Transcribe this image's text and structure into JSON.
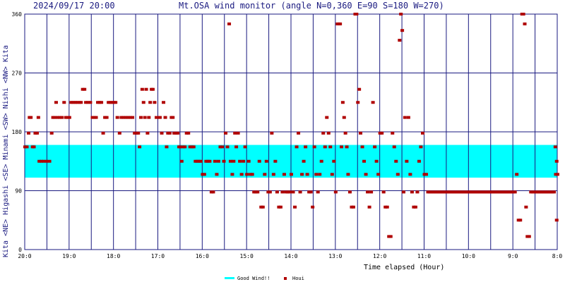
{
  "header": {
    "timestamp": "2024/09/17 20:00",
    "title": "Mt.OSA wind monitor (angle N=0,360 E=90 S=180 W=270)"
  },
  "side_label": "Kita <NE> Higashi <SE> Minami <SW> Nishi <NW> Kita",
  "legend": {
    "band_label": "Good Wind!!",
    "points_label": "Houi"
  },
  "colors": {
    "band": "#00ffff",
    "points": "#b00000",
    "grid": "#1a1a80",
    "text": "#1a1a80"
  },
  "chart_data": {
    "type": "scatter",
    "title": "Mt.OSA wind monitor (angle N=0,360 E=90 S=180 W=270)",
    "xlabel": "Time elapsed (Hour)",
    "ylabel": "",
    "ylim": [
      0,
      360
    ],
    "x_range": [
      20,
      8
    ],
    "x_axis_reversed": true,
    "y_ticks": [
      "0",
      "90",
      "180",
      "270",
      "360"
    ],
    "y_tick_values": [
      0,
      90,
      180,
      270,
      360
    ],
    "x_ticks": [
      "20:0",
      "19:0",
      "18:0",
      "17:0",
      "16:0",
      "15:0",
      "14:0",
      "13:0",
      "12:0",
      "11:0",
      "10:0",
      "9:0",
      "8:0"
    ],
    "x_tick_values": [
      20,
      19,
      18,
      17,
      16,
      15,
      14,
      13,
      12,
      11,
      10,
      9,
      8
    ],
    "good_wind_band": [
      110,
      160
    ],
    "grid": true,
    "legend_position": "bottom-center",
    "series": [
      {
        "name": "Houi",
        "points": [
          [
            20.0,
            157
          ],
          [
            19.96,
            157
          ],
          [
            19.92,
            178
          ],
          [
            19.9,
            202
          ],
          [
            19.87,
            202
          ],
          [
            19.83,
            157
          ],
          [
            19.8,
            157
          ],
          [
            19.77,
            178
          ],
          [
            19.73,
            178
          ],
          [
            19.7,
            202
          ],
          [
            19.68,
            135
          ],
          [
            19.63,
            135
          ],
          [
            19.58,
            135
          ],
          [
            19.52,
            135
          ],
          [
            19.45,
            135
          ],
          [
            19.4,
            178
          ],
          [
            19.37,
            202
          ],
          [
            19.33,
            202
          ],
          [
            19.3,
            225
          ],
          [
            19.27,
            202
          ],
          [
            19.22,
            202
          ],
          [
            19.17,
            202
          ],
          [
            19.12,
            225
          ],
          [
            19.08,
            202
          ],
          [
            19.04,
            202
          ],
          [
            19.0,
            202
          ],
          [
            18.96,
            225
          ],
          [
            18.92,
            225
          ],
          [
            18.87,
            225
          ],
          [
            18.83,
            225
          ],
          [
            18.78,
            225
          ],
          [
            18.74,
            225
          ],
          [
            18.7,
            245
          ],
          [
            18.66,
            245
          ],
          [
            18.63,
            225
          ],
          [
            18.58,
            225
          ],
          [
            18.53,
            225
          ],
          [
            18.48,
            202
          ],
          [
            18.44,
            202
          ],
          [
            18.4,
            202
          ],
          [
            18.36,
            225
          ],
          [
            18.32,
            225
          ],
          [
            18.28,
            225
          ],
          [
            18.24,
            178
          ],
          [
            18.2,
            202
          ],
          [
            18.16,
            202
          ],
          [
            18.12,
            225
          ],
          [
            18.08,
            225
          ],
          [
            18.04,
            225
          ],
          [
            18.0,
            225
          ],
          [
            17.96,
            225
          ],
          [
            17.92,
            202
          ],
          [
            17.87,
            178
          ],
          [
            17.83,
            202
          ],
          [
            17.78,
            202
          ],
          [
            17.73,
            202
          ],
          [
            17.68,
            202
          ],
          [
            17.63,
            202
          ],
          [
            17.58,
            202
          ],
          [
            17.53,
            178
          ],
          [
            17.49,
            178
          ],
          [
            17.45,
            178
          ],
          [
            17.42,
            157
          ],
          [
            17.39,
            202
          ],
          [
            17.36,
            245
          ],
          [
            17.33,
            225
          ],
          [
            17.3,
            202
          ],
          [
            17.27,
            245
          ],
          [
            17.24,
            178
          ],
          [
            17.21,
            202
          ],
          [
            17.18,
            225
          ],
          [
            17.15,
            245
          ],
          [
            17.12,
            245
          ],
          [
            17.08,
            225
          ],
          [
            17.04,
            202
          ],
          [
            17.0,
            202
          ],
          [
            16.96,
            202
          ],
          [
            16.92,
            178
          ],
          [
            16.88,
            225
          ],
          [
            16.84,
            202
          ],
          [
            16.81,
            157
          ],
          [
            16.78,
            178
          ],
          [
            16.74,
            178
          ],
          [
            16.7,
            202
          ],
          [
            16.67,
            202
          ],
          [
            16.64,
            178
          ],
          [
            16.6,
            178
          ],
          [
            16.56,
            178
          ],
          [
            16.53,
            157
          ],
          [
            16.5,
            157
          ],
          [
            16.47,
            135
          ],
          [
            16.44,
            157
          ],
          [
            16.4,
            157
          ],
          [
            16.36,
            178
          ],
          [
            16.32,
            178
          ],
          [
            16.28,
            157
          ],
          [
            16.24,
            157
          ],
          [
            16.2,
            157
          ],
          [
            16.16,
            135
          ],
          [
            16.12,
            135
          ],
          [
            16.08,
            135
          ],
          [
            16.04,
            135
          ],
          [
            16.0,
            115
          ],
          [
            15.96,
            115
          ],
          [
            15.92,
            135
          ],
          [
            15.88,
            135
          ],
          [
            15.84,
            135
          ],
          [
            15.8,
            88
          ],
          [
            15.76,
            88
          ],
          [
            15.72,
            135
          ],
          [
            15.68,
            115
          ],
          [
            15.64,
            135
          ],
          [
            15.6,
            157
          ],
          [
            15.56,
            157
          ],
          [
            15.52,
            135
          ],
          [
            15.48,
            178
          ],
          [
            15.44,
            157
          ],
          [
            15.4,
            345
          ],
          [
            15.37,
            135
          ],
          [
            15.33,
            115
          ],
          [
            15.3,
            135
          ],
          [
            15.27,
            178
          ],
          [
            15.24,
            157
          ],
          [
            15.2,
            178
          ],
          [
            15.16,
            135
          ],
          [
            15.12,
            115
          ],
          [
            15.08,
            135
          ],
          [
            15.04,
            157
          ],
          [
            15.0,
            115
          ],
          [
            14.96,
            135
          ],
          [
            14.92,
            115
          ],
          [
            14.88,
            115
          ],
          [
            14.84,
            88
          ],
          [
            14.8,
            88
          ],
          [
            14.76,
            88
          ],
          [
            14.72,
            135
          ],
          [
            14.68,
            65
          ],
          [
            14.64,
            65
          ],
          [
            14.6,
            115
          ],
          [
            14.56,
            135
          ],
          [
            14.52,
            88
          ],
          [
            14.48,
            88
          ],
          [
            14.44,
            178
          ],
          [
            14.4,
            115
          ],
          [
            14.36,
            135
          ],
          [
            14.32,
            88
          ],
          [
            14.28,
            65
          ],
          [
            14.24,
            65
          ],
          [
            14.2,
            88
          ],
          [
            14.16,
            115
          ],
          [
            14.12,
            88
          ],
          [
            14.08,
            88
          ],
          [
            14.04,
            88
          ],
          [
            14.0,
            115
          ],
          [
            13.96,
            88
          ],
          [
            13.92,
            65
          ],
          [
            13.88,
            157
          ],
          [
            13.84,
            178
          ],
          [
            13.8,
            88
          ],
          [
            13.76,
            115
          ],
          [
            13.72,
            135
          ],
          [
            13.68,
            157
          ],
          [
            13.64,
            115
          ],
          [
            13.6,
            88
          ],
          [
            13.56,
            88
          ],
          [
            13.52,
            65
          ],
          [
            13.48,
            157
          ],
          [
            13.44,
            115
          ],
          [
            13.4,
            88
          ],
          [
            13.36,
            115
          ],
          [
            13.32,
            135
          ],
          [
            13.28,
            178
          ],
          [
            13.24,
            157
          ],
          [
            13.2,
            202
          ],
          [
            13.16,
            178
          ],
          [
            13.12,
            157
          ],
          [
            13.08,
            115
          ],
          [
            13.04,
            135
          ],
          [
            13.0,
            88
          ],
          [
            12.96,
            345
          ],
          [
            12.93,
            345
          ],
          [
            12.9,
            345
          ],
          [
            12.87,
            157
          ],
          [
            12.84,
            225
          ],
          [
            12.81,
            202
          ],
          [
            12.78,
            178
          ],
          [
            12.75,
            157
          ],
          [
            12.72,
            115
          ],
          [
            12.68,
            88
          ],
          [
            12.64,
            65
          ],
          [
            12.6,
            65
          ],
          [
            12.56,
            360
          ],
          [
            12.53,
            360
          ],
          [
            12.5,
            225
          ],
          [
            12.47,
            245
          ],
          [
            12.44,
            178
          ],
          [
            12.4,
            157
          ],
          [
            12.36,
            135
          ],
          [
            12.32,
            115
          ],
          [
            12.28,
            88
          ],
          [
            12.24,
            65
          ],
          [
            12.2,
            88
          ],
          [
            12.16,
            225
          ],
          [
            12.12,
            157
          ],
          [
            12.08,
            135
          ],
          [
            12.04,
            115
          ],
          [
            12.0,
            178
          ],
          [
            11.96,
            178
          ],
          [
            11.92,
            88
          ],
          [
            11.88,
            65
          ],
          [
            11.84,
            65
          ],
          [
            11.8,
            20
          ],
          [
            11.76,
            20
          ],
          [
            11.72,
            178
          ],
          [
            11.68,
            157
          ],
          [
            11.64,
            135
          ],
          [
            11.6,
            115
          ],
          [
            11.56,
            320
          ],
          [
            11.53,
            360
          ],
          [
            11.5,
            335
          ],
          [
            11.47,
            88
          ],
          [
            11.44,
            202
          ],
          [
            11.4,
            135
          ],
          [
            11.36,
            202
          ],
          [
            11.32,
            115
          ],
          [
            11.28,
            88
          ],
          [
            11.24,
            65
          ],
          [
            11.2,
            65
          ],
          [
            11.16,
            88
          ],
          [
            11.12,
            135
          ],
          [
            11.08,
            157
          ],
          [
            11.04,
            178
          ],
          [
            11.0,
            115
          ],
          [
            10.96,
            115
          ],
          [
            10.92,
            88
          ],
          [
            10.88,
            88
          ],
          [
            10.84,
            88
          ],
          [
            10.8,
            88
          ],
          [
            10.76,
            88
          ],
          [
            10.72,
            88
          ],
          [
            10.68,
            88
          ],
          [
            10.64,
            88
          ],
          [
            10.6,
            88
          ],
          [
            10.56,
            88
          ],
          [
            10.52,
            88
          ],
          [
            10.48,
            88
          ],
          [
            10.44,
            88
          ],
          [
            10.4,
            88
          ],
          [
            10.36,
            88
          ],
          [
            10.32,
            88
          ],
          [
            10.28,
            88
          ],
          [
            10.24,
            88
          ],
          [
            10.2,
            88
          ],
          [
            10.16,
            88
          ],
          [
            10.12,
            88
          ],
          [
            10.08,
            88
          ],
          [
            10.04,
            88
          ],
          [
            10.0,
            88
          ],
          [
            9.96,
            88
          ],
          [
            9.92,
            88
          ],
          [
            9.88,
            88
          ],
          [
            9.84,
            88
          ],
          [
            9.8,
            88
          ],
          [
            9.76,
            88
          ],
          [
            9.72,
            88
          ],
          [
            9.68,
            88
          ],
          [
            9.64,
            88
          ],
          [
            9.6,
            88
          ],
          [
            9.56,
            88
          ],
          [
            9.52,
            88
          ],
          [
            9.48,
            88
          ],
          [
            9.44,
            88
          ],
          [
            9.4,
            88
          ],
          [
            9.36,
            88
          ],
          [
            9.32,
            88
          ],
          [
            9.28,
            88
          ],
          [
            9.24,
            88
          ],
          [
            9.2,
            88
          ],
          [
            9.16,
            88
          ],
          [
            9.12,
            88
          ],
          [
            9.08,
            88
          ],
          [
            9.04,
            88
          ],
          [
            9.0,
            88
          ],
          [
            8.96,
            88
          ],
          [
            8.92,
            115
          ],
          [
            8.88,
            45
          ],
          [
            8.84,
            45
          ],
          [
            8.8,
            360
          ],
          [
            8.77,
            360
          ],
          [
            8.74,
            345
          ],
          [
            8.71,
            65
          ],
          [
            8.68,
            20
          ],
          [
            8.64,
            20
          ],
          [
            8.6,
            88
          ],
          [
            8.56,
            88
          ],
          [
            8.52,
            88
          ],
          [
            8.48,
            88
          ],
          [
            8.44,
            88
          ],
          [
            8.4,
            88
          ],
          [
            8.36,
            88
          ],
          [
            8.32,
            88
          ],
          [
            8.28,
            88
          ],
          [
            8.24,
            88
          ],
          [
            8.2,
            88
          ],
          [
            8.16,
            88
          ],
          [
            8.12,
            88
          ],
          [
            8.08,
            88
          ],
          [
            8.04,
            115
          ],
          [
            8.0,
            115
          ],
          [
            8.02,
            45
          ],
          [
            8.02,
            135
          ],
          [
            8.05,
            157
          ]
        ]
      }
    ]
  }
}
